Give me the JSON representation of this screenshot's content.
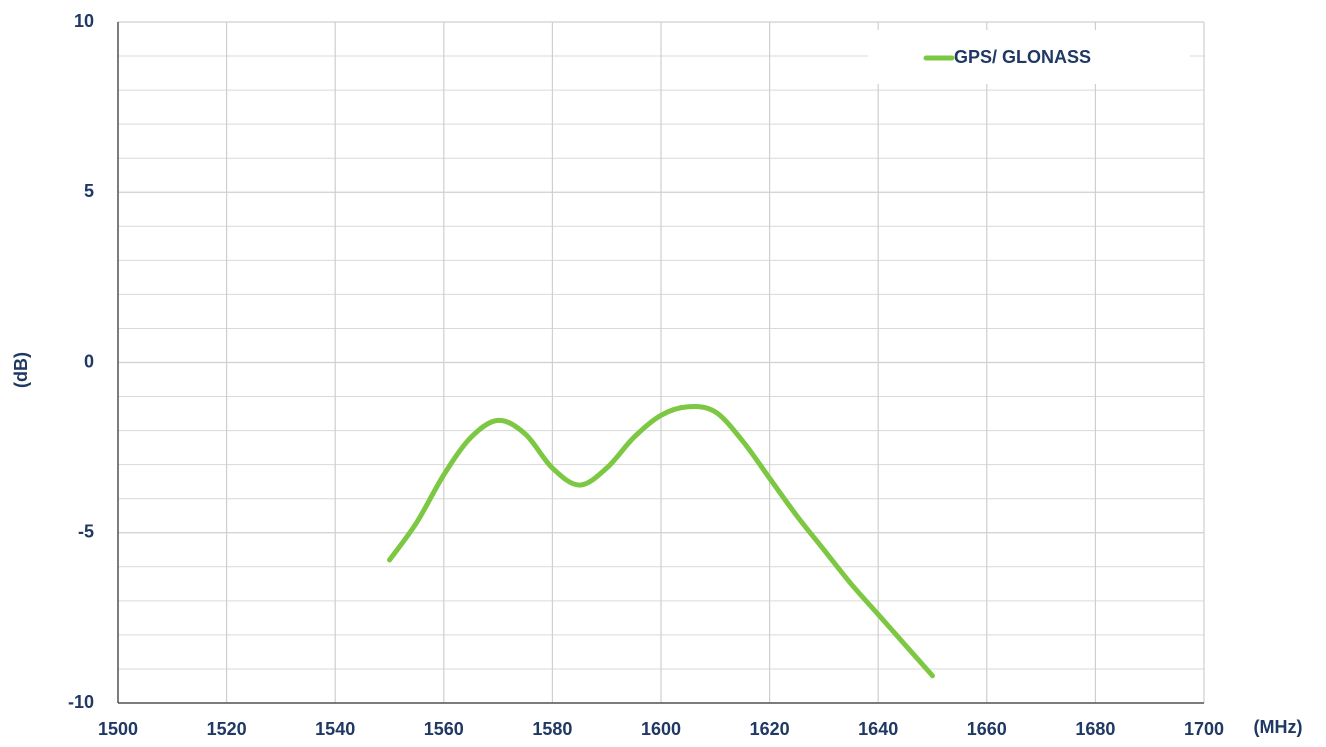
{
  "chart_data": {
    "type": "line",
    "xlabel": "(MHz)",
    "ylabel": "(dB)",
    "x": [
      1550,
      1555,
      1560,
      1565,
      1570,
      1575,
      1580,
      1585,
      1590,
      1595,
      1600,
      1605,
      1610,
      1615,
      1620,
      1625,
      1630,
      1635,
      1640,
      1645,
      1650
    ],
    "series": [
      {
        "name": "GPS/ GLONASS",
        "color": "#7dc843",
        "values": [
          -5.8,
          -4.7,
          -3.3,
          -2.2,
          -1.7,
          -2.1,
          -3.1,
          -3.6,
          -3.1,
          -2.2,
          -1.55,
          -1.3,
          -1.45,
          -2.3,
          -3.4,
          -4.5,
          -5.5,
          -6.5,
          -7.4,
          -8.3,
          -9.2
        ]
      }
    ],
    "xlim": [
      1500,
      1700
    ],
    "xticks": [
      1500,
      1520,
      1540,
      1560,
      1580,
      1600,
      1620,
      1640,
      1660,
      1680,
      1700
    ],
    "ylim": [
      -10,
      10
    ],
    "yticks": [
      -10,
      -5,
      0,
      5,
      10
    ],
    "grid": true,
    "minor_grid": true,
    "legend": "upper right"
  }
}
